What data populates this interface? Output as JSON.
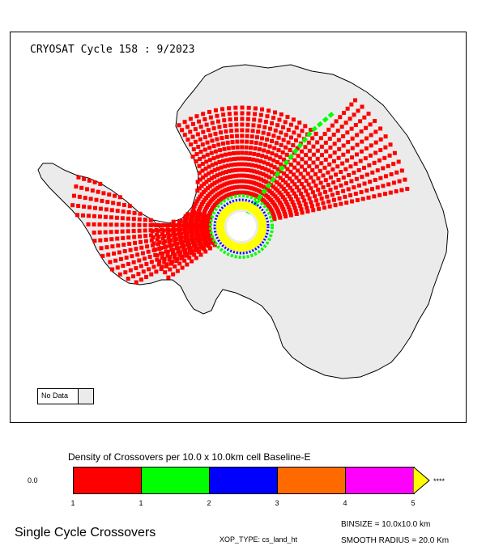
{
  "map": {
    "title": "CRYOSAT Cycle 158 : 9/2023",
    "no_data_label": "No Data",
    "colors": {
      "land": "#ebebeb",
      "coast": "#000000",
      "hole": "#ffffff"
    }
  },
  "legend": {
    "title": "Density of Crossovers per  10.0 x  10.0km cell Baseline-E",
    "left_value": "0.0",
    "overflow_label": "****",
    "segments": [
      {
        "color": "#ff0000"
      },
      {
        "color": "#00ff00"
      },
      {
        "color": "#0000ff"
      },
      {
        "color": "#ff6a00"
      },
      {
        "color": "#ff00ff"
      }
    ],
    "overflow_color": "#ffff00",
    "ticks": [
      "1",
      "1",
      "2",
      "3",
      "4",
      "5"
    ]
  },
  "footer": {
    "title": "Single Cycle Crossovers",
    "xop_type": "XOP_TYPE: cs_land_ht",
    "binsize": "BINSIZE = 10.0x10.0 km",
    "smooth_radius": "SMOOTH RADIUS =  20.0 Km"
  }
}
